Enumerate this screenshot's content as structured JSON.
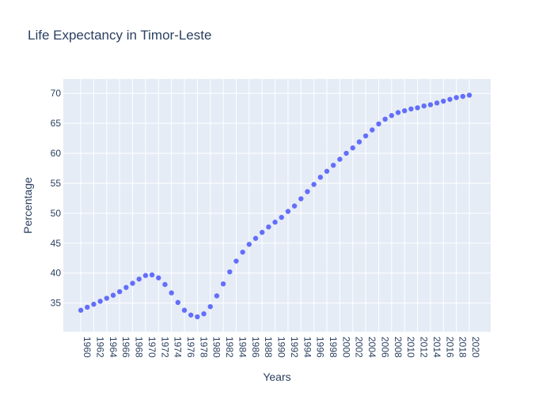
{
  "chart_data": {
    "type": "scatter",
    "title": "Life Expectancy in Timor-Leste",
    "xlabel": "Years",
    "ylabel": "Percentage",
    "x": [
      1960,
      1961,
      1962,
      1963,
      1964,
      1965,
      1966,
      1967,
      1968,
      1969,
      1970,
      1971,
      1972,
      1973,
      1974,
      1975,
      1976,
      1977,
      1978,
      1979,
      1980,
      1981,
      1982,
      1983,
      1984,
      1985,
      1986,
      1987,
      1988,
      1989,
      1990,
      1991,
      1992,
      1993,
      1994,
      1995,
      1996,
      1997,
      1998,
      1999,
      2000,
      2001,
      2002,
      2003,
      2004,
      2005,
      2006,
      2007,
      2008,
      2009,
      2010,
      2011,
      2012,
      2013,
      2014,
      2015,
      2016,
      2017,
      2018,
      2019,
      2020
    ],
    "y": [
      33.8,
      34.3,
      34.8,
      35.3,
      35.8,
      36.3,
      36.9,
      37.6,
      38.3,
      39.0,
      39.6,
      39.7,
      39.2,
      38.1,
      36.7,
      35.1,
      33.8,
      33.0,
      32.7,
      33.2,
      34.4,
      36.2,
      38.2,
      40.2,
      42.0,
      43.5,
      44.8,
      45.8,
      46.8,
      47.7,
      48.5,
      49.3,
      50.3,
      51.2,
      52.4,
      53.6,
      54.8,
      56.0,
      57.0,
      58.0,
      59.0,
      60.0,
      60.9,
      61.9,
      62.9,
      63.9,
      64.9,
      65.7,
      66.3,
      66.8,
      67.1,
      67.4,
      67.6,
      67.9,
      68.1,
      68.4,
      68.7,
      69.0,
      69.3,
      69.5,
      69.7
    ],
    "xticks": [
      "1960",
      "1962",
      "1964",
      "1966",
      "1968",
      "1970",
      "1972",
      "1974",
      "1976",
      "1978",
      "1980",
      "1982",
      "1984",
      "1986",
      "1988",
      "1990",
      "1992",
      "1994",
      "1996",
      "1998",
      "2000",
      "2002",
      "2004",
      "2006",
      "2008",
      "2010",
      "2012",
      "2014",
      "2016",
      "2018",
      "2020"
    ],
    "yticks": [
      35,
      40,
      45,
      50,
      55,
      60,
      65,
      70
    ],
    "xlim": [
      1957.3,
      2023.3
    ],
    "ylim": [
      30.2,
      72.4
    ],
    "grid": true,
    "legend": "none",
    "colors": {
      "marker": "#636efa",
      "plot_bg": "#e5ecf6",
      "grid": "#ffffff",
      "text": "#2a3f5f"
    }
  }
}
